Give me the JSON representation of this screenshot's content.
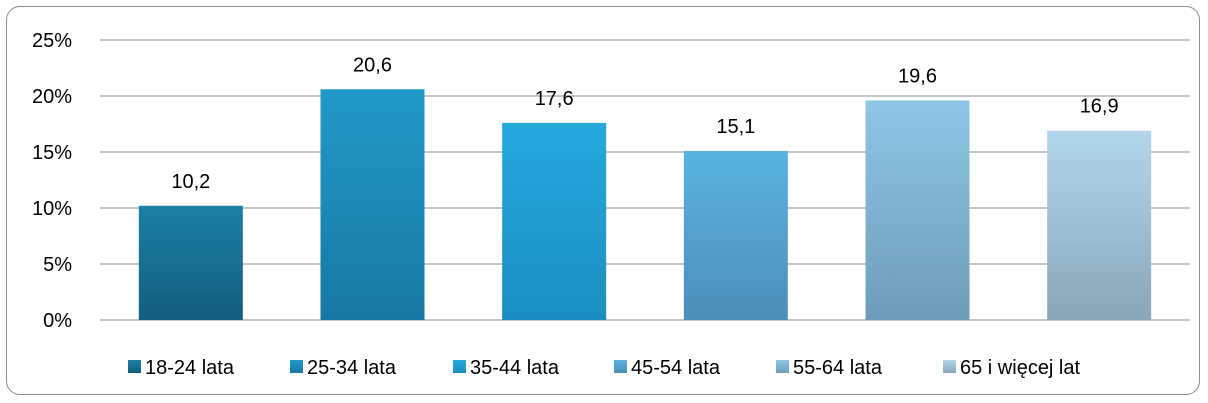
{
  "chart_data": {
    "type": "bar",
    "categories": [
      "18-24 lata",
      "25-34 lata",
      "35-44 lata",
      "45-54 lata",
      "55-64 lata",
      "65 i więcej lat"
    ],
    "values": [
      10.2,
      20.6,
      17.6,
      15.1,
      19.6,
      16.9
    ],
    "data_labels": [
      "10,2",
      "20,6",
      "17,6",
      "15,1",
      "19,6",
      "16,9"
    ],
    "y_ticks": [
      "0%",
      "5%",
      "10%",
      "15%",
      "20%",
      "25%"
    ],
    "ylim": [
      0,
      25
    ],
    "grid": true,
    "legend": "bottom",
    "colors": {
      "top": [
        "#1e7fa4",
        "#2199c9",
        "#25a9dd",
        "#5ab3e0",
        "#8ec6e6",
        "#b3d6ec"
      ],
      "bottom": [
        "#115f7f",
        "#1878a3",
        "#1a8ec0",
        "#4a8fb8",
        "#6e9cb8",
        "#8aa6b8"
      ]
    }
  }
}
